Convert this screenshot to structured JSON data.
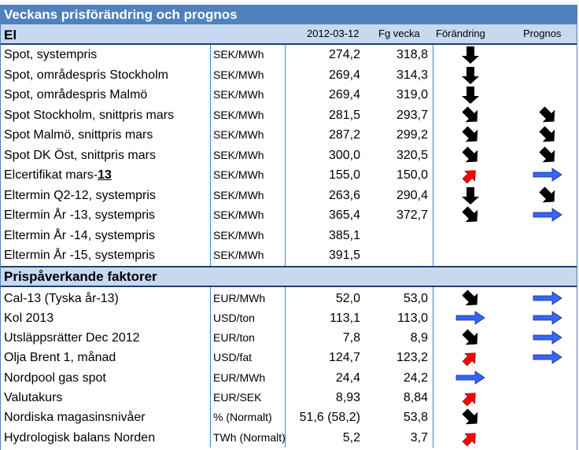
{
  "title": "Veckans prisförändring och prognos",
  "header": {
    "section": "El",
    "date": "2012-03-12",
    "prev": "Fg vecka",
    "change": "Förändring",
    "forecast": "Prognos"
  },
  "el_rows": [
    {
      "name": "Spot, systempris",
      "unit": "SEK/MWh",
      "value": "274,2",
      "prev": "318,8",
      "change": "down",
      "forecast": ""
    },
    {
      "name": "Spot, områdespris Stockholm",
      "unit": "SEK/MWh",
      "value": "269,4",
      "prev": "314,3",
      "change": "down",
      "forecast": ""
    },
    {
      "name": "Spot, områdespris Malmö",
      "unit": "SEK/MWh",
      "value": "269,4",
      "prev": "319,0",
      "change": "down",
      "forecast": ""
    },
    {
      "name": "Spot Stockholm, snittpris mars",
      "unit": "SEK/MWh",
      "value": "281,5",
      "prev": "293,7",
      "change": "down-right",
      "forecast": "down-right"
    },
    {
      "name": "Spot Malmö, snittpris mars",
      "unit": "SEK/MWh",
      "value": "287,2",
      "prev": "299,2",
      "change": "down-right",
      "forecast": "down-right"
    },
    {
      "name": "Spot DK Öst, snittpris mars",
      "unit": "SEK/MWh",
      "value": "300,0",
      "prev": "320,5",
      "change": "down-right",
      "forecast": "down-right"
    },
    {
      "name": "Elcertifikat mars-",
      "name_bold": "13",
      "unit": "SEK/MWh",
      "value": "155,0",
      "prev": "150,0",
      "change": "up-right",
      "forecast": "right"
    },
    {
      "name": "Eltermin Q2-12, systempris",
      "unit": "SEK/MWh",
      "value": "263,6",
      "prev": "290,4",
      "change": "down",
      "forecast": "down-right"
    },
    {
      "name": "Eltermin År -13, systempris",
      "unit": "SEK/MWh",
      "value": "365,4",
      "prev": "372,7",
      "change": "down-right",
      "forecast": "right"
    },
    {
      "name": "Eltermin År -14, systempris",
      "unit": "SEK/MWh",
      "value": "385,1",
      "prev": "",
      "change": "",
      "forecast": ""
    },
    {
      "name": "Eltermin År -15, systempris",
      "unit": "SEK/MWh",
      "value": "391,5",
      "prev": "",
      "change": "",
      "forecast": ""
    }
  ],
  "factors_title": "Prispåverkande faktorer",
  "factor_rows": [
    {
      "name": "Cal-13 (Tyska år-13)",
      "unit": "EUR/MWh",
      "value": "52,0",
      "prev": "53,0",
      "change": "down-right",
      "forecast": "right"
    },
    {
      "name": "Kol 2013",
      "unit": "USD/ton",
      "value": "113,1",
      "prev": "113,0",
      "change": "right",
      "forecast": "right"
    },
    {
      "name": "Utsläppsrätter Dec 2012",
      "unit": "EUR/ton",
      "value": "7,8",
      "prev": "8,9",
      "change": "down-right",
      "forecast": "right"
    },
    {
      "name": "Olja Brent 1, månad",
      "unit": "USD/fat",
      "value": "124,7",
      "prev": "123,2",
      "change": "up-right",
      "forecast": "right"
    },
    {
      "name": "Nordpool gas spot",
      "unit": "EUR/MWh",
      "value": "24,4",
      "prev": "24,2",
      "change": "right",
      "forecast": ""
    },
    {
      "name": "Valutakurs",
      "unit": "EUR/SEK",
      "value": "8,93",
      "prev": "8,84",
      "change": "up-right",
      "forecast": ""
    },
    {
      "name": "Nordiska magasinsnivåer",
      "unit": "% (Normalt)",
      "value": "51,6 (58,2)",
      "prev": "53,8",
      "change": "down-right",
      "forecast": ""
    },
    {
      "name": "Hydrologisk balans Norden",
      "unit": "TWh (Normalt)",
      "value": "5,2",
      "prev": "3,7",
      "change": "up-right",
      "forecast": ""
    }
  ],
  "colors": {
    "title_bg": "#4f81bd",
    "header_bg": "#c6d9f1",
    "up": "#ff0000",
    "down": "#000000",
    "flat": "#3366ff"
  }
}
